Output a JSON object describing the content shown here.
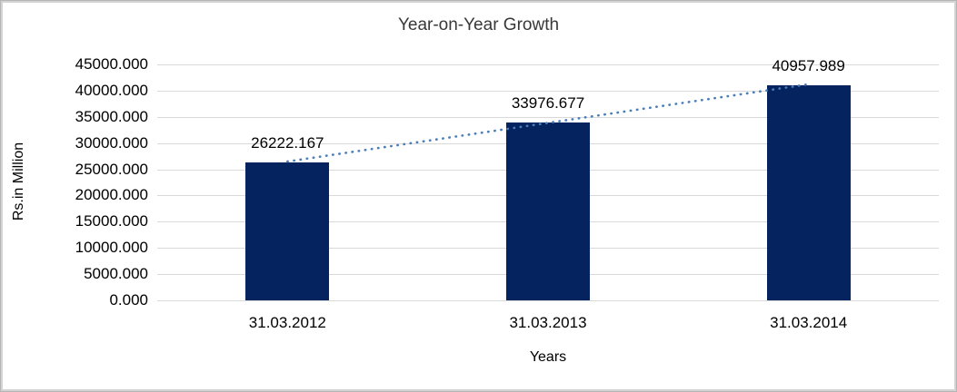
{
  "title": "Year-on-Year Growth",
  "chart_data": {
    "type": "bar",
    "title": "Year-on-Year Growth",
    "categories": [
      "31.03.2012",
      "31.03.2013",
      "31.03.2014"
    ],
    "values": [
      26222.167,
      33976.677,
      40957.989
    ],
    "data_labels": [
      "26222.167",
      "33976.677",
      "40957.989"
    ],
    "xlabel": "Years",
    "ylabel": "Rs.in Million",
    "ylim": [
      0,
      45000
    ],
    "ytick_step": 5000,
    "ytick_labels": [
      "0.000",
      "5000.000",
      "10000.000",
      "15000.000",
      "20000.000",
      "25000.000",
      "30000.000",
      "35000.000",
      "40000.000",
      "45000.000"
    ],
    "grid": true,
    "legend_position": "none",
    "trendline": {
      "type": "linear",
      "style": "dotted",
      "from_value": 26222.167,
      "to_value": 40957.989
    }
  },
  "colors": {
    "bar": "#05235F",
    "trendline": "#4A7EBB",
    "gridline": "#D9D9D9",
    "frame_border": "#D3D3D3",
    "title_text": "#383838",
    "label_text": "#000000"
  }
}
